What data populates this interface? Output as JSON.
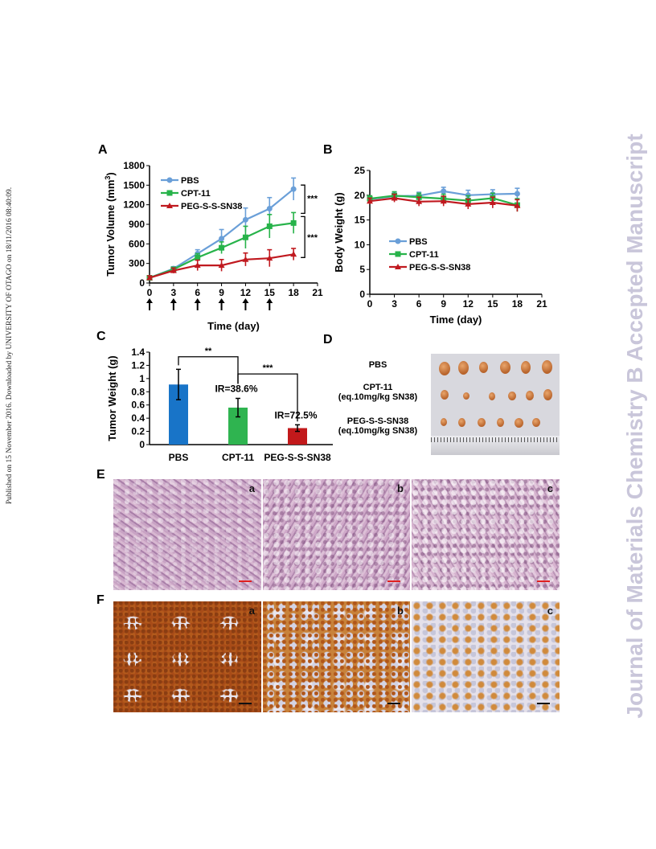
{
  "header": {
    "left_margin_text": "Published on 15 November 2016. Downloaded by UNIVERSITY OF OTAGO on 18/11/2016 08:40:09.",
    "right_margin_text": "Journal of Materials Chemistry B Accepted Manuscript"
  },
  "panels": {
    "A": "A",
    "B": "B",
    "C": "C",
    "D": "D",
    "E": "E",
    "F": "F"
  },
  "colors": {
    "pbs": "#6a9fd8",
    "cpt11": "#27b34a",
    "peg": "#c0191f",
    "bar_pbs": "#1874c8",
    "bar_cpt": "#2fb450",
    "bar_peg": "#c2191b"
  },
  "chart_data": [
    {
      "id": "A",
      "type": "line",
      "xlabel": "Time (day)",
      "ylabel": "Tumor Volume (mm",
      "ylabel_sup": "3",
      "ylabel_end": ")",
      "xlim": [
        0,
        21
      ],
      "ylim": [
        0,
        1800
      ],
      "xticks": [
        0,
        3,
        6,
        9,
        12,
        15,
        18,
        21
      ],
      "yticks": [
        0,
        300,
        600,
        900,
        1200,
        1500,
        1800
      ],
      "x": [
        0,
        3,
        6,
        9,
        12,
        15,
        18
      ],
      "series": [
        {
          "name": "PBS",
          "values": [
            80,
            220,
            450,
            680,
            970,
            1140,
            1440
          ],
          "err": [
            30,
            30,
            60,
            140,
            180,
            170,
            170
          ]
        },
        {
          "name": "CPT-11",
          "values": [
            80,
            210,
            390,
            540,
            700,
            870,
            920
          ],
          "err": [
            30,
            30,
            60,
            90,
            170,
            180,
            160
          ]
        },
        {
          "name": "PEG-S-S-SN38",
          "values": [
            80,
            190,
            270,
            270,
            360,
            380,
            440
          ],
          "err": [
            30,
            40,
            80,
            90,
            100,
            130,
            90
          ]
        }
      ],
      "dose_days": [
        0,
        3,
        6,
        9,
        12,
        15
      ],
      "significance": [
        "***",
        "***"
      ],
      "legend": "top-left"
    },
    {
      "id": "B",
      "type": "line",
      "xlabel": "Time (day)",
      "ylabel": "Body Weight (g)",
      "xlim": [
        0,
        21
      ],
      "ylim": [
        0,
        25
      ],
      "xticks": [
        0,
        3,
        6,
        9,
        12,
        15,
        18,
        21
      ],
      "yticks": [
        0,
        5,
        10,
        15,
        20,
        25
      ],
      "x": [
        0,
        3,
        6,
        9,
        12,
        15,
        18
      ],
      "series": [
        {
          "name": "PBS",
          "values": [
            19.2,
            19.8,
            19.9,
            20.8,
            20.0,
            20.2,
            20.3
          ],
          "err": [
            0.6,
            0.8,
            0.7,
            0.8,
            1.0,
            0.9,
            1.1
          ]
        },
        {
          "name": "CPT-11",
          "values": [
            19.3,
            19.9,
            19.6,
            19.3,
            18.9,
            19.4,
            18.0
          ],
          "err": [
            0.6,
            0.8,
            0.8,
            0.9,
            1.0,
            1.0,
            1.3
          ]
        },
        {
          "name": "PEG-S-S-SN38",
          "values": [
            18.8,
            19.4,
            18.7,
            18.8,
            18.2,
            18.5,
            17.9
          ],
          "err": [
            0.6,
            0.8,
            0.9,
            1.0,
            1.0,
            1.1,
            1.2
          ]
        }
      ],
      "legend": "bottom-left"
    },
    {
      "id": "C",
      "type": "bar",
      "ylabel": "Tumor Weight (g)",
      "ylim": [
        0,
        1.4
      ],
      "yticks": [
        0,
        0.2,
        0.4,
        0.6,
        0.8,
        1,
        1.2,
        1.4
      ],
      "categories": [
        "PBS",
        "CPT-11",
        "PEG-S-S-SN38"
      ],
      "values": [
        0.91,
        0.56,
        0.25
      ],
      "err": [
        0.23,
        0.14,
        0.05
      ],
      "annotations": [
        "IR=38.6%",
        "IR=72.5%"
      ],
      "significance": [
        "**",
        "***"
      ]
    }
  ],
  "panel_d": {
    "rows": [
      {
        "line1": "PBS",
        "line2": ""
      },
      {
        "line1": "CPT-11",
        "line2": "(eq.10mg/kg SN38)"
      },
      {
        "line1": "PEG-S-S-SN38",
        "line2": "(eq.10mg/kg SN38)"
      }
    ]
  },
  "panel_e": {
    "labels": [
      "a",
      "b",
      "c"
    ],
    "scale_color": "#e02020"
  },
  "panel_f": {
    "labels": [
      "a",
      "b",
      "c"
    ],
    "scale_color": "#111111"
  }
}
